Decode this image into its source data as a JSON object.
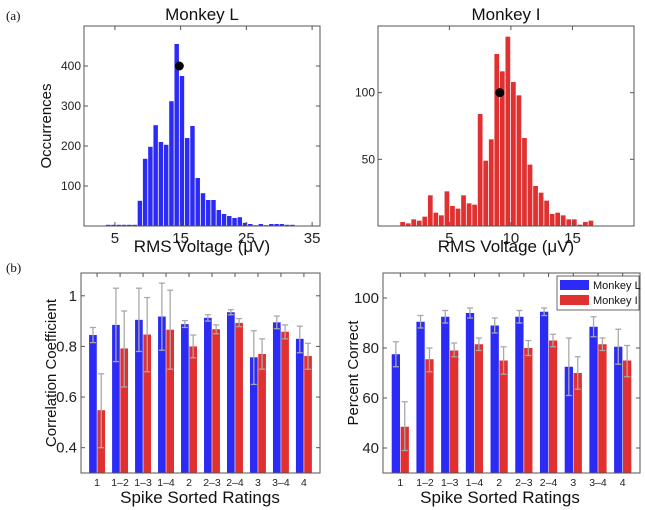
{
  "panel_labels": [
    "(a)",
    "(b)"
  ],
  "colors": {
    "monkey_l": "#2b2bf5",
    "monkey_i": "#e03030",
    "error_bar": "#a9a9a9",
    "marker": "#000000"
  },
  "chart_data": [
    {
      "id": "hist-monkey-l",
      "type": "bar",
      "title": "Monkey L",
      "xlabel": "RMS Voltage (μV)",
      "ylabel": "Occurrences",
      "xlim": [
        0.3,
        36.2
      ],
      "ylim": [
        0,
        500
      ],
      "xticks": [
        5,
        15,
        25,
        35
      ],
      "yticks": [
        100,
        200,
        300,
        400
      ],
      "bin_width": 0.8,
      "x": [
        4.0,
        4.8,
        5.6,
        6.4,
        7.2,
        8.0,
        8.8,
        9.6,
        10.4,
        11.2,
        12.0,
        12.8,
        13.6,
        14.4,
        15.2,
        16.0,
        16.8,
        17.6,
        18.4,
        19.2,
        20.0,
        20.8,
        21.6,
        22.4,
        23.2,
        24.0,
        24.8,
        25.6,
        26.4,
        27.2,
        28.0,
        28.8,
        29.6,
        30.4,
        31.2,
        32.0,
        32.8,
        33.6
      ],
      "values": [
        3,
        3,
        3,
        3,
        3,
        3,
        63,
        168,
        198,
        252,
        210,
        203,
        312,
        455,
        375,
        220,
        250,
        120,
        82,
        65,
        65,
        40,
        30,
        25,
        20,
        22,
        8,
        5,
        2,
        5,
        2,
        5,
        5,
        5,
        3,
        3,
        1,
        1
      ],
      "marker": {
        "x": 14.8,
        "y": 400
      },
      "grid": false
    },
    {
      "id": "hist-monkey-i",
      "type": "bar",
      "title": "Monkey I",
      "xlabel": "RMS Voltage (μV)",
      "ylabel": "",
      "xlim": [
        -0.8,
        20
      ],
      "ylim": [
        0,
        150
      ],
      "xticks": [
        5,
        10,
        15
      ],
      "yticks": [
        50,
        100
      ],
      "bin_width": 0.45,
      "x": [
        1.2,
        1.65,
        2.1,
        2.55,
        3.0,
        3.45,
        3.9,
        4.35,
        4.8,
        5.25,
        5.7,
        6.15,
        6.6,
        7.05,
        7.5,
        7.95,
        8.4,
        8.85,
        9.3,
        9.75,
        10.2,
        10.65,
        11.1,
        11.55,
        12.0,
        12.45,
        12.9,
        13.35,
        13.8,
        14.25,
        14.7,
        15.15,
        15.6,
        16.05,
        16.5
      ],
      "values": [
        3,
        2,
        5,
        4,
        7,
        23,
        10,
        8,
        26,
        15,
        13,
        23,
        17,
        16,
        84,
        49,
        65,
        129,
        116,
        142,
        108,
        98,
        66,
        46,
        30,
        25,
        19,
        9,
        10,
        8,
        5,
        5,
        1,
        3,
        4
      ],
      "marker": {
        "x": 9.1,
        "y": 100
      },
      "grid": false
    },
    {
      "id": "bar-correlation",
      "type": "bar",
      "title": "",
      "xlabel": "Spike Sorted Ratings",
      "ylabel": "Correlation Coefficient",
      "ylim": [
        0.3,
        1.09
      ],
      "yticks": [
        0.4,
        0.6,
        0.8,
        1
      ],
      "ytick_labels": [
        "0.4",
        "0.6",
        "0.8",
        "1"
      ],
      "categories": [
        "1",
        "1–2",
        "1–3",
        "1–4",
        "2",
        "2–3",
        "2–4",
        "3",
        "3–4",
        "4"
      ],
      "series": [
        {
          "name": "Monkey L",
          "values": [
            0.845,
            0.885,
            0.905,
            0.918,
            0.888,
            0.913,
            0.935,
            0.757,
            0.895,
            0.83
          ],
          "err_low": [
            0.815,
            0.74,
            0.78,
            0.785,
            0.875,
            0.9,
            0.925,
            0.65,
            0.87,
            0.775
          ],
          "err_high": [
            0.875,
            1.03,
            1.03,
            1.05,
            0.902,
            0.925,
            0.945,
            0.862,
            0.92,
            0.88
          ]
        },
        {
          "name": "Monkey I",
          "values": [
            0.548,
            0.792,
            0.847,
            0.866,
            0.8,
            0.868,
            0.893,
            0.77,
            0.858,
            0.762
          ],
          "err_low": [
            0.4,
            0.64,
            0.7,
            0.71,
            0.755,
            0.85,
            0.878,
            0.71,
            0.83,
            0.71
          ],
          "err_high": [
            0.692,
            0.94,
            0.993,
            1.022,
            0.845,
            0.885,
            0.91,
            0.83,
            0.885,
            0.812
          ]
        }
      ],
      "legend": null
    },
    {
      "id": "bar-percent-correct",
      "type": "bar",
      "title": "",
      "xlabel": "Spike Sorted Ratings",
      "ylabel": "Percent Correct",
      "ylim": [
        30,
        110
      ],
      "yticks": [
        40,
        60,
        80,
        100
      ],
      "ytick_labels": [
        "40",
        "60",
        "80",
        "100"
      ],
      "categories": [
        "1",
        "1–2",
        "1–3",
        "1–4",
        "2",
        "2–3",
        "2–4",
        "3",
        "3–4",
        "4"
      ],
      "series": [
        {
          "name": "Monkey L",
          "values": [
            77.5,
            90.5,
            92.5,
            94,
            89,
            92.5,
            94.5,
            72.5,
            88.5,
            80.5
          ],
          "err_low": [
            72.5,
            88,
            90,
            92,
            86,
            90,
            93,
            61,
            84.5,
            73.5
          ],
          "err_high": [
            82.5,
            93,
            95,
            96,
            92,
            95,
            96,
            84,
            92.5,
            87.5
          ]
        },
        {
          "name": "Monkey I",
          "values": [
            48.5,
            75.5,
            79,
            81.5,
            75,
            80,
            83,
            70,
            81.5,
            75
          ],
          "err_low": [
            39,
            70.5,
            76.5,
            79,
            69.5,
            77,
            80.5,
            63.5,
            79,
            68.5
          ],
          "err_high": [
            58.5,
            80,
            82,
            84,
            80.5,
            83,
            85.5,
            76.5,
            84,
            81
          ]
        }
      ],
      "legend": {
        "position": "top-right",
        "entries": [
          "Monkey L",
          "Monkey I"
        ]
      }
    }
  ]
}
